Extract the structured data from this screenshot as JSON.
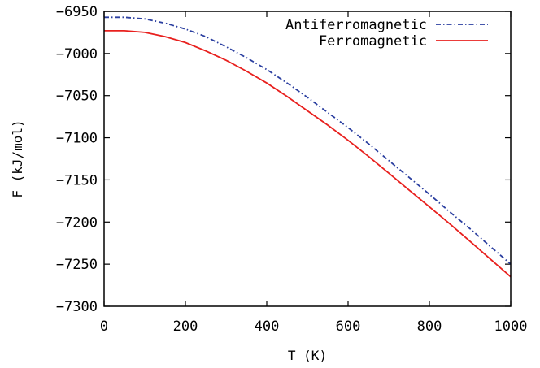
{
  "chart_data": {
    "type": "line",
    "xlabel": "T (K)",
    "ylabel": "F (kJ/mol)",
    "xlim": [
      0,
      1000
    ],
    "ylim": [
      -7300,
      -6950
    ],
    "xticks": [
      "0",
      "200",
      "400",
      "600",
      "800",
      "1000"
    ],
    "yticks": [
      "-6950",
      "-7000",
      "-7050",
      "-7100",
      "-7150",
      "-7200",
      "-7250",
      "-7300"
    ],
    "grid": false,
    "legend_position": "top-right",
    "series": [
      {
        "name": "Antiferromagnetic",
        "color": "#2b3fa0",
        "dash": "dash-dot",
        "x": [
          0,
          50,
          100,
          150,
          200,
          250,
          300,
          350,
          400,
          450,
          500,
          550,
          600,
          650,
          700,
          750,
          800,
          850,
          900,
          950,
          1000
        ],
        "y": [
          -6957,
          -6957,
          -6959,
          -6964,
          -6971,
          -6980,
          -6992,
          -7005,
          -7019,
          -7035,
          -7052,
          -7070,
          -7088,
          -7107,
          -7127,
          -7147,
          -7167,
          -7188,
          -7208,
          -7229,
          -7250
        ]
      },
      {
        "name": "Ferromagnetic",
        "color": "#e8201e",
        "dash": "solid",
        "x": [
          0,
          50,
          100,
          150,
          200,
          250,
          300,
          350,
          400,
          450,
          500,
          550,
          600,
          650,
          700,
          750,
          800,
          850,
          900,
          950,
          1000
        ],
        "y": [
          -6973,
          -6973,
          -6975,
          -6980,
          -6987,
          -6997,
          -7008,
          -7021,
          -7035,
          -7051,
          -7068,
          -7085,
          -7103,
          -7122,
          -7142,
          -7162,
          -7182,
          -7202,
          -7223,
          -7244,
          -7265
        ]
      }
    ]
  }
}
